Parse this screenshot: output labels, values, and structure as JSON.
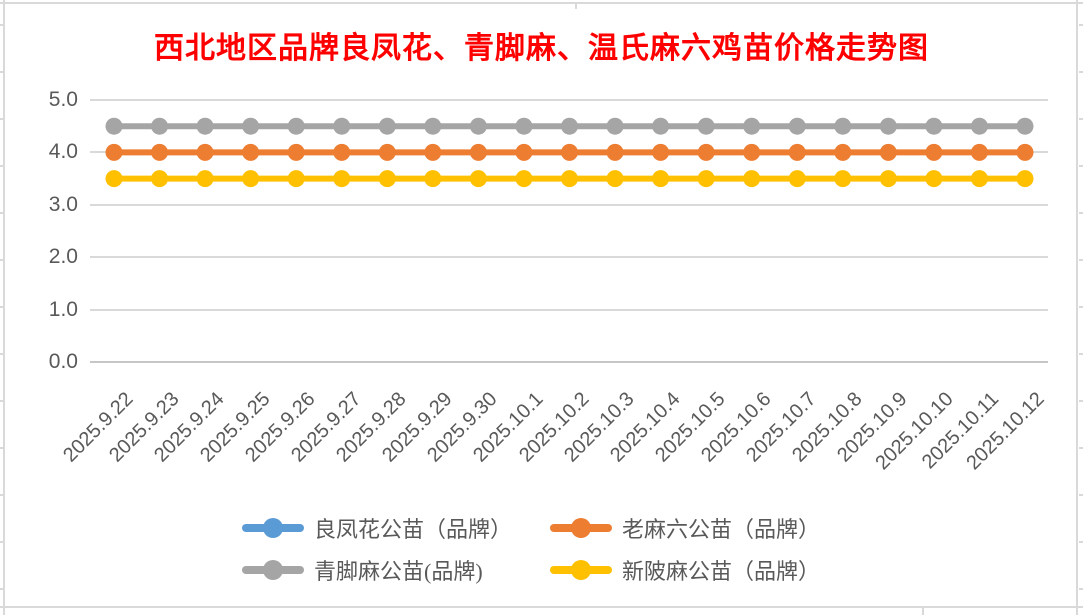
{
  "chart_data": {
    "type": "line",
    "title": "西北地区品牌良凤花、青脚麻、温氏麻六鸡苗价格走势图",
    "title_color": "#FF0000",
    "categories": [
      "2025.9.22",
      "2025.9.23",
      "2025.9.24",
      "2025.9.25",
      "2025.9.26",
      "2025.9.27",
      "2025.9.28",
      "2025.9.29",
      "2025.9.30",
      "2025.10.1",
      "2025.10.2",
      "2025.10.3",
      "2025.10.4",
      "2025.10.5",
      "2025.10.6",
      "2025.10.7",
      "2025.10.8",
      "2025.10.9",
      "2025.10.10",
      "2025.10.11",
      "2025.10.12"
    ],
    "series": [
      {
        "name": "良凤花公苗（品牌）",
        "color": "#5B9BD5",
        "visible_in_plot": false,
        "values": null,
        "note": "legend entry shown, but line not visible in plot (hidden behind an overlapping series)"
      },
      {
        "name": "老麻六公苗（品牌）",
        "color": "#ED7D31",
        "visible_in_plot": true,
        "values": [
          4.0,
          4.0,
          4.0,
          4.0,
          4.0,
          4.0,
          4.0,
          4.0,
          4.0,
          4.0,
          4.0,
          4.0,
          4.0,
          4.0,
          4.0,
          4.0,
          4.0,
          4.0,
          4.0,
          4.0,
          4.0
        ]
      },
      {
        "name": "青脚麻公苗(品牌)",
        "color": "#A5A5A5",
        "visible_in_plot": true,
        "values": [
          4.5,
          4.5,
          4.5,
          4.5,
          4.5,
          4.5,
          4.5,
          4.5,
          4.5,
          4.5,
          4.5,
          4.5,
          4.5,
          4.5,
          4.5,
          4.5,
          4.5,
          4.5,
          4.5,
          4.5,
          4.5
        ]
      },
      {
        "name": "新陂麻公苗（品牌）",
        "color": "#FFC000",
        "visible_in_plot": true,
        "values": [
          3.5,
          3.5,
          3.5,
          3.5,
          3.5,
          3.5,
          3.5,
          3.5,
          3.5,
          3.5,
          3.5,
          3.5,
          3.5,
          3.5,
          3.5,
          3.5,
          3.5,
          3.5,
          3.5,
          3.5,
          3.5
        ]
      }
    ],
    "y_axis": {
      "min": 0,
      "max": 5,
      "ticks": [
        {
          "value": 0,
          "label": "0.0"
        },
        {
          "value": 1,
          "label": "1.0"
        },
        {
          "value": 2,
          "label": "2.0"
        },
        {
          "value": 3,
          "label": "3.0"
        },
        {
          "value": 4,
          "label": "4.0"
        },
        {
          "value": 5,
          "label": "5.0"
        }
      ]
    },
    "grid": true,
    "legend_position": "bottom-center",
    "legend_columns": 2,
    "colors": {
      "gridline": "#D9D9D9",
      "axis_text": "#595959",
      "frame": "#D9D9D9"
    }
  }
}
